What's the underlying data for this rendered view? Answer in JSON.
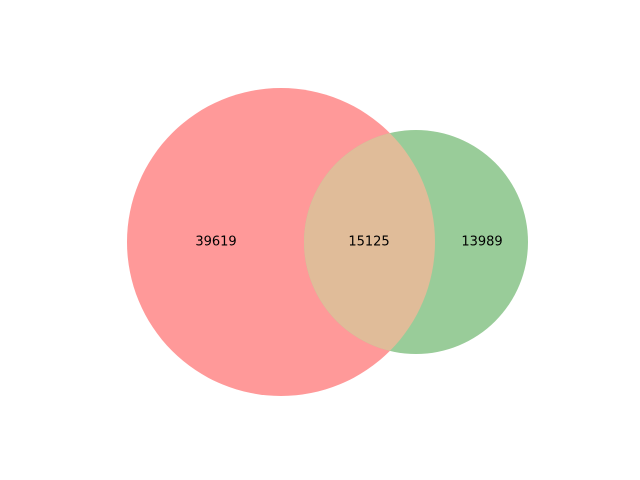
{
  "diagram": {
    "type": "venn2",
    "sets": [
      {
        "color": "#ff9999"
      },
      {
        "color": "#99cc99"
      }
    ],
    "overlap_color": "#e0bc99",
    "regions": {
      "only_a": "39619",
      "both": "15125",
      "only_b": "13989"
    }
  }
}
